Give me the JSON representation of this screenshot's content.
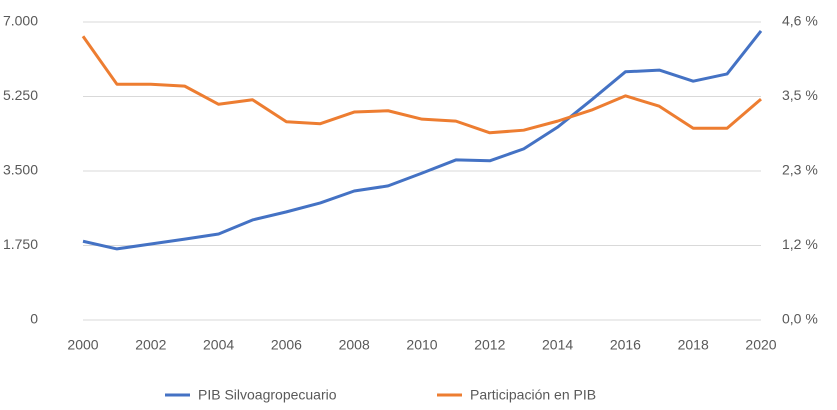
{
  "chart_data": {
    "type": "line",
    "x": [
      2000,
      2001,
      2002,
      2003,
      2004,
      2005,
      2006,
      2007,
      2008,
      2009,
      2010,
      2011,
      2012,
      2013,
      2014,
      2015,
      2016,
      2017,
      2018,
      2019,
      2020
    ],
    "series": [
      {
        "name": "PIB Silvoagropecuario",
        "color": "#4472c4",
        "values": [
          1850,
          1670,
          1785,
          1900,
          2020,
          2350,
          2540,
          2750,
          3030,
          3150,
          3450,
          3760,
          3740,
          4020,
          4530,
          5170,
          5830,
          5870,
          5610,
          5780,
          6790
        ]
      },
      {
        "name": "Participación en PIB",
        "color": "#ed7d31",
        "axis": "y2",
        "values": [
          4.38,
          3.64,
          3.64,
          3.61,
          3.33,
          3.4,
          3.06,
          3.03,
          3.21,
          3.23,
          3.1,
          3.07,
          2.89,
          2.93,
          3.07,
          3.24,
          3.46,
          3.3,
          2.96,
          2.96,
          3.41
        ]
      }
    ],
    "xlim": [
      2000,
      2020
    ],
    "xticks": [
      2000,
      2002,
      2004,
      2006,
      2008,
      2010,
      2012,
      2014,
      2016,
      2018,
      2020
    ],
    "ylim": [
      0,
      7000
    ],
    "yticks": [
      0,
      {
        "value": 1750,
        "label": "1.750"
      },
      {
        "value": 3500,
        "label": "3.500"
      },
      {
        "value": 5250,
        "label": "5.250"
      },
      {
        "value": 7000,
        "label": "7.000"
      }
    ],
    "y2lim": [
      0,
      4.6
    ],
    "y2ticks": [
      {
        "value": 0,
        "label": "0,0 %"
      },
      {
        "value": 1.15,
        "label": "1,2 %"
      },
      {
        "value": 2.3,
        "label": "2,3 %"
      },
      {
        "value": 3.45,
        "label": "3,5 %"
      },
      {
        "value": 4.6,
        "label": "4,6 %"
      }
    ],
    "grid": true,
    "legend": "bottom"
  }
}
